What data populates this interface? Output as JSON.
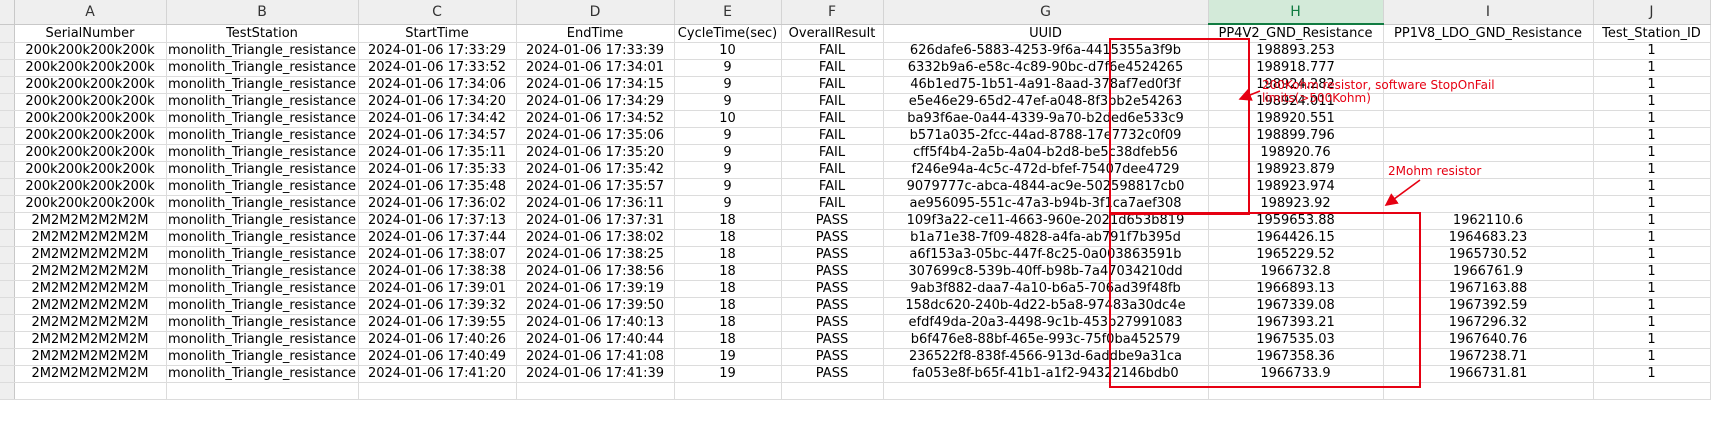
{
  "columns": [
    {
      "letter": "A",
      "header": "SerialNumber",
      "width": 152
    },
    {
      "letter": "B",
      "header": "TestStation",
      "width": 192
    },
    {
      "letter": "C",
      "header": "StartTime",
      "width": 158
    },
    {
      "letter": "D",
      "header": "EndTime",
      "width": 158
    },
    {
      "letter": "E",
      "header": "CycleTime(sec)",
      "width": 107
    },
    {
      "letter": "F",
      "header": "OverallResult",
      "width": 102
    },
    {
      "letter": "G",
      "header": "UUID",
      "width": 325
    },
    {
      "letter": "H",
      "header": "PP4V2_GND_Resistance",
      "width": 175
    },
    {
      "letter": "I",
      "header": "PP1V8_LDO_GND_Resistance",
      "width": 210
    },
    {
      "letter": "J",
      "header": "Test_Station_ID",
      "width": 117
    }
  ],
  "selected_column": "H",
  "rows": [
    [
      "200k200k200k200k",
      "monolith_Triangle_resistance",
      "2024-01-06 17:33:29",
      "2024-01-06 17:33:39",
      "10",
      "FAIL",
      "626dafe6-5883-4253-9f6a-4415355a3f9b",
      "198893.253",
      "",
      "1"
    ],
    [
      "200k200k200k200k",
      "monolith_Triangle_resistance",
      "2024-01-06 17:33:52",
      "2024-01-06 17:34:01",
      "9",
      "FAIL",
      "6332b9a6-e58c-4c89-90bc-d7f6e4524265",
      "198918.777",
      "",
      "1"
    ],
    [
      "200k200k200k200k",
      "monolith_Triangle_resistance",
      "2024-01-06 17:34:06",
      "2024-01-06 17:34:15",
      "9",
      "FAIL",
      "46b1ed75-1b51-4a91-8aad-378af7ed0f3f",
      "198924.282",
      "",
      "1"
    ],
    [
      "200k200k200k200k",
      "monolith_Triangle_resistance",
      "2024-01-06 17:34:20",
      "2024-01-06 17:34:29",
      "9",
      "FAIL",
      "e5e46e29-65d2-47ef-a048-8f3bb2e54263",
      "198924.011",
      "",
      "1"
    ],
    [
      "200k200k200k200k",
      "monolith_Triangle_resistance",
      "2024-01-06 17:34:42",
      "2024-01-06 17:34:52",
      "10",
      "FAIL",
      "ba93f6ae-0a44-4339-9a70-b2ded6e533c9",
      "198920.551",
      "",
      "1"
    ],
    [
      "200k200k200k200k",
      "monolith_Triangle_resistance",
      "2024-01-06 17:34:57",
      "2024-01-06 17:35:06",
      "9",
      "FAIL",
      "b571a035-2fcc-44ad-8788-17e7732c0f09",
      "198899.796",
      "",
      "1"
    ],
    [
      "200k200k200k200k",
      "monolith_Triangle_resistance",
      "2024-01-06 17:35:11",
      "2024-01-06 17:35:20",
      "9",
      "FAIL",
      "cff5f4b4-2a5b-4a04-b2d8-be5c38dfeb56",
      "198920.76",
      "",
      "1"
    ],
    [
      "200k200k200k200k",
      "monolith_Triangle_resistance",
      "2024-01-06 17:35:33",
      "2024-01-06 17:35:42",
      "9",
      "FAIL",
      "f246e94a-4c5c-472d-bfef-75407dee4729",
      "198923.879",
      "",
      "1"
    ],
    [
      "200k200k200k200k",
      "monolith_Triangle_resistance",
      "2024-01-06 17:35:48",
      "2024-01-06 17:35:57",
      "9",
      "FAIL",
      "9079777c-abca-4844-ac9e-502598817cb0",
      "198923.974",
      "",
      "1"
    ],
    [
      "200k200k200k200k",
      "monolith_Triangle_resistance",
      "2024-01-06 17:36:02",
      "2024-01-06 17:36:11",
      "9",
      "FAIL",
      "ae956095-551c-47a3-b94b-3f1ca7aef308",
      "198923.92",
      "",
      "1"
    ],
    [
      "2M2M2M2M2M2M",
      "monolith_Triangle_resistance",
      "2024-01-06 17:37:13",
      "2024-01-06 17:37:31",
      "18",
      "PASS",
      "109f3a22-ce11-4663-960e-2021d653b819",
      "1959653.88",
      "1962110.6",
      "1"
    ],
    [
      "2M2M2M2M2M2M",
      "monolith_Triangle_resistance",
      "2024-01-06 17:37:44",
      "2024-01-06 17:38:02",
      "18",
      "PASS",
      "b1a71e38-7f09-4828-a4fa-ab791f7b395d",
      "1964426.15",
      "1964683.23",
      "1"
    ],
    [
      "2M2M2M2M2M2M",
      "monolith_Triangle_resistance",
      "2024-01-06 17:38:07",
      "2024-01-06 17:38:25",
      "18",
      "PASS",
      "a6f153a3-05bc-447f-8c25-0a003863591b",
      "1965229.52",
      "1965730.52",
      "1"
    ],
    [
      "2M2M2M2M2M2M",
      "monolith_Triangle_resistance",
      "2024-01-06 17:38:38",
      "2024-01-06 17:38:56",
      "18",
      "PASS",
      "307699c8-539b-40ff-b98b-7a47034210dd",
      "1966732.8",
      "1966761.9",
      "1"
    ],
    [
      "2M2M2M2M2M2M",
      "monolith_Triangle_resistance",
      "2024-01-06 17:39:01",
      "2024-01-06 17:39:19",
      "18",
      "PASS",
      "9ab3f882-daa7-4a10-b6a5-706ad39f48fb",
      "1966893.13",
      "1967163.88",
      "1"
    ],
    [
      "2M2M2M2M2M2M",
      "monolith_Triangle_resistance",
      "2024-01-06 17:39:32",
      "2024-01-06 17:39:50",
      "18",
      "PASS",
      "158dc620-240b-4d22-b5a8-97483a30dc4e",
      "1967339.08",
      "1967392.59",
      "1"
    ],
    [
      "2M2M2M2M2M2M",
      "monolith_Triangle_resistance",
      "2024-01-06 17:39:55",
      "2024-01-06 17:40:13",
      "18",
      "PASS",
      "efdf49da-20a3-4498-9c1b-453b27991083",
      "1967393.21",
      "1967296.32",
      "1"
    ],
    [
      "2M2M2M2M2M2M",
      "monolith_Triangle_resistance",
      "2024-01-06 17:40:26",
      "2024-01-06 17:40:44",
      "18",
      "PASS",
      "b6f476e8-88bf-465e-993c-75f0ba452579",
      "1967535.03",
      "1967640.76",
      "1"
    ],
    [
      "2M2M2M2M2M2M",
      "monolith_Triangle_resistance",
      "2024-01-06 17:40:49",
      "2024-01-06 17:41:08",
      "19",
      "PASS",
      "236522f8-838f-4566-913d-6addbe9a31ca",
      "1967358.36",
      "1967238.71",
      "1"
    ],
    [
      "2M2M2M2M2M2M",
      "monolith_Triangle_resistance",
      "2024-01-06 17:41:20",
      "2024-01-06 17:41:39",
      "19",
      "PASS",
      "fa053e8f-b65f-41b1-a1f2-94322146bdb0",
      "1966733.9",
      "1966731.81",
      "1"
    ]
  ],
  "annotations": {
    "note_200k_line1": "200Kohm resistor, software StopOnFail",
    "note_200k_line2": "limits(>500Kohm)",
    "note_2m": "2Mohm resistor",
    "color": "#e60012"
  }
}
